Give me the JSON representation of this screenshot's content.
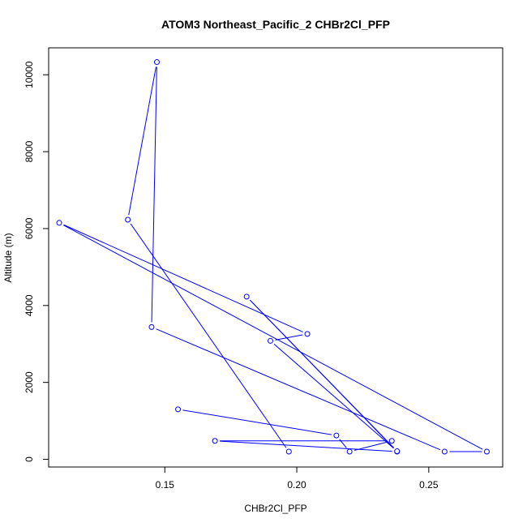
{
  "chart_data": {
    "type": "line",
    "title": "ATOM3 Northeast_Pacific_2 CHBr2Cl_PFP",
    "xlabel": "CHBr2Cl_PFP",
    "ylabel": "Altitude (m)",
    "xlim": [
      0.106,
      0.278
    ],
    "ylim": [
      -200,
      10700
    ],
    "xticks": [
      0.15,
      0.2,
      0.25
    ],
    "xtick_labels": [
      "0.15",
      "0.20",
      "0.25"
    ],
    "yticks": [
      0,
      2000,
      4000,
      6000,
      8000,
      10000
    ],
    "ytick_labels": [
      "0",
      "2000",
      "4000",
      "6000",
      "8000",
      "10000"
    ],
    "grid": false,
    "legend": "none",
    "color": "#0000ff",
    "series": [
      {
        "points": [
          {
            "x": 0.155,
            "y": 1300
          },
          {
            "x": 0.215,
            "y": 620
          },
          {
            "x": 0.22,
            "y": 200
          },
          {
            "x": 0.236,
            "y": 480
          },
          {
            "x": 0.169,
            "y": 480
          },
          {
            "x": 0.238,
            "y": 200
          },
          {
            "x": 0.181,
            "y": 4230
          },
          {
            "x": 0.238,
            "y": 210
          },
          {
            "x": 0.19,
            "y": 3080
          },
          {
            "x": 0.204,
            "y": 3260
          },
          {
            "x": 0.11,
            "y": 6150
          },
          {
            "x": 0.272,
            "y": 200
          },
          {
            "x": 0.256,
            "y": 200
          },
          {
            "x": 0.145,
            "y": 3440
          },
          {
            "x": 0.147,
            "y": 10330
          },
          {
            "x": 0.136,
            "y": 6230
          },
          {
            "x": 0.197,
            "y": 200
          }
        ]
      }
    ]
  }
}
